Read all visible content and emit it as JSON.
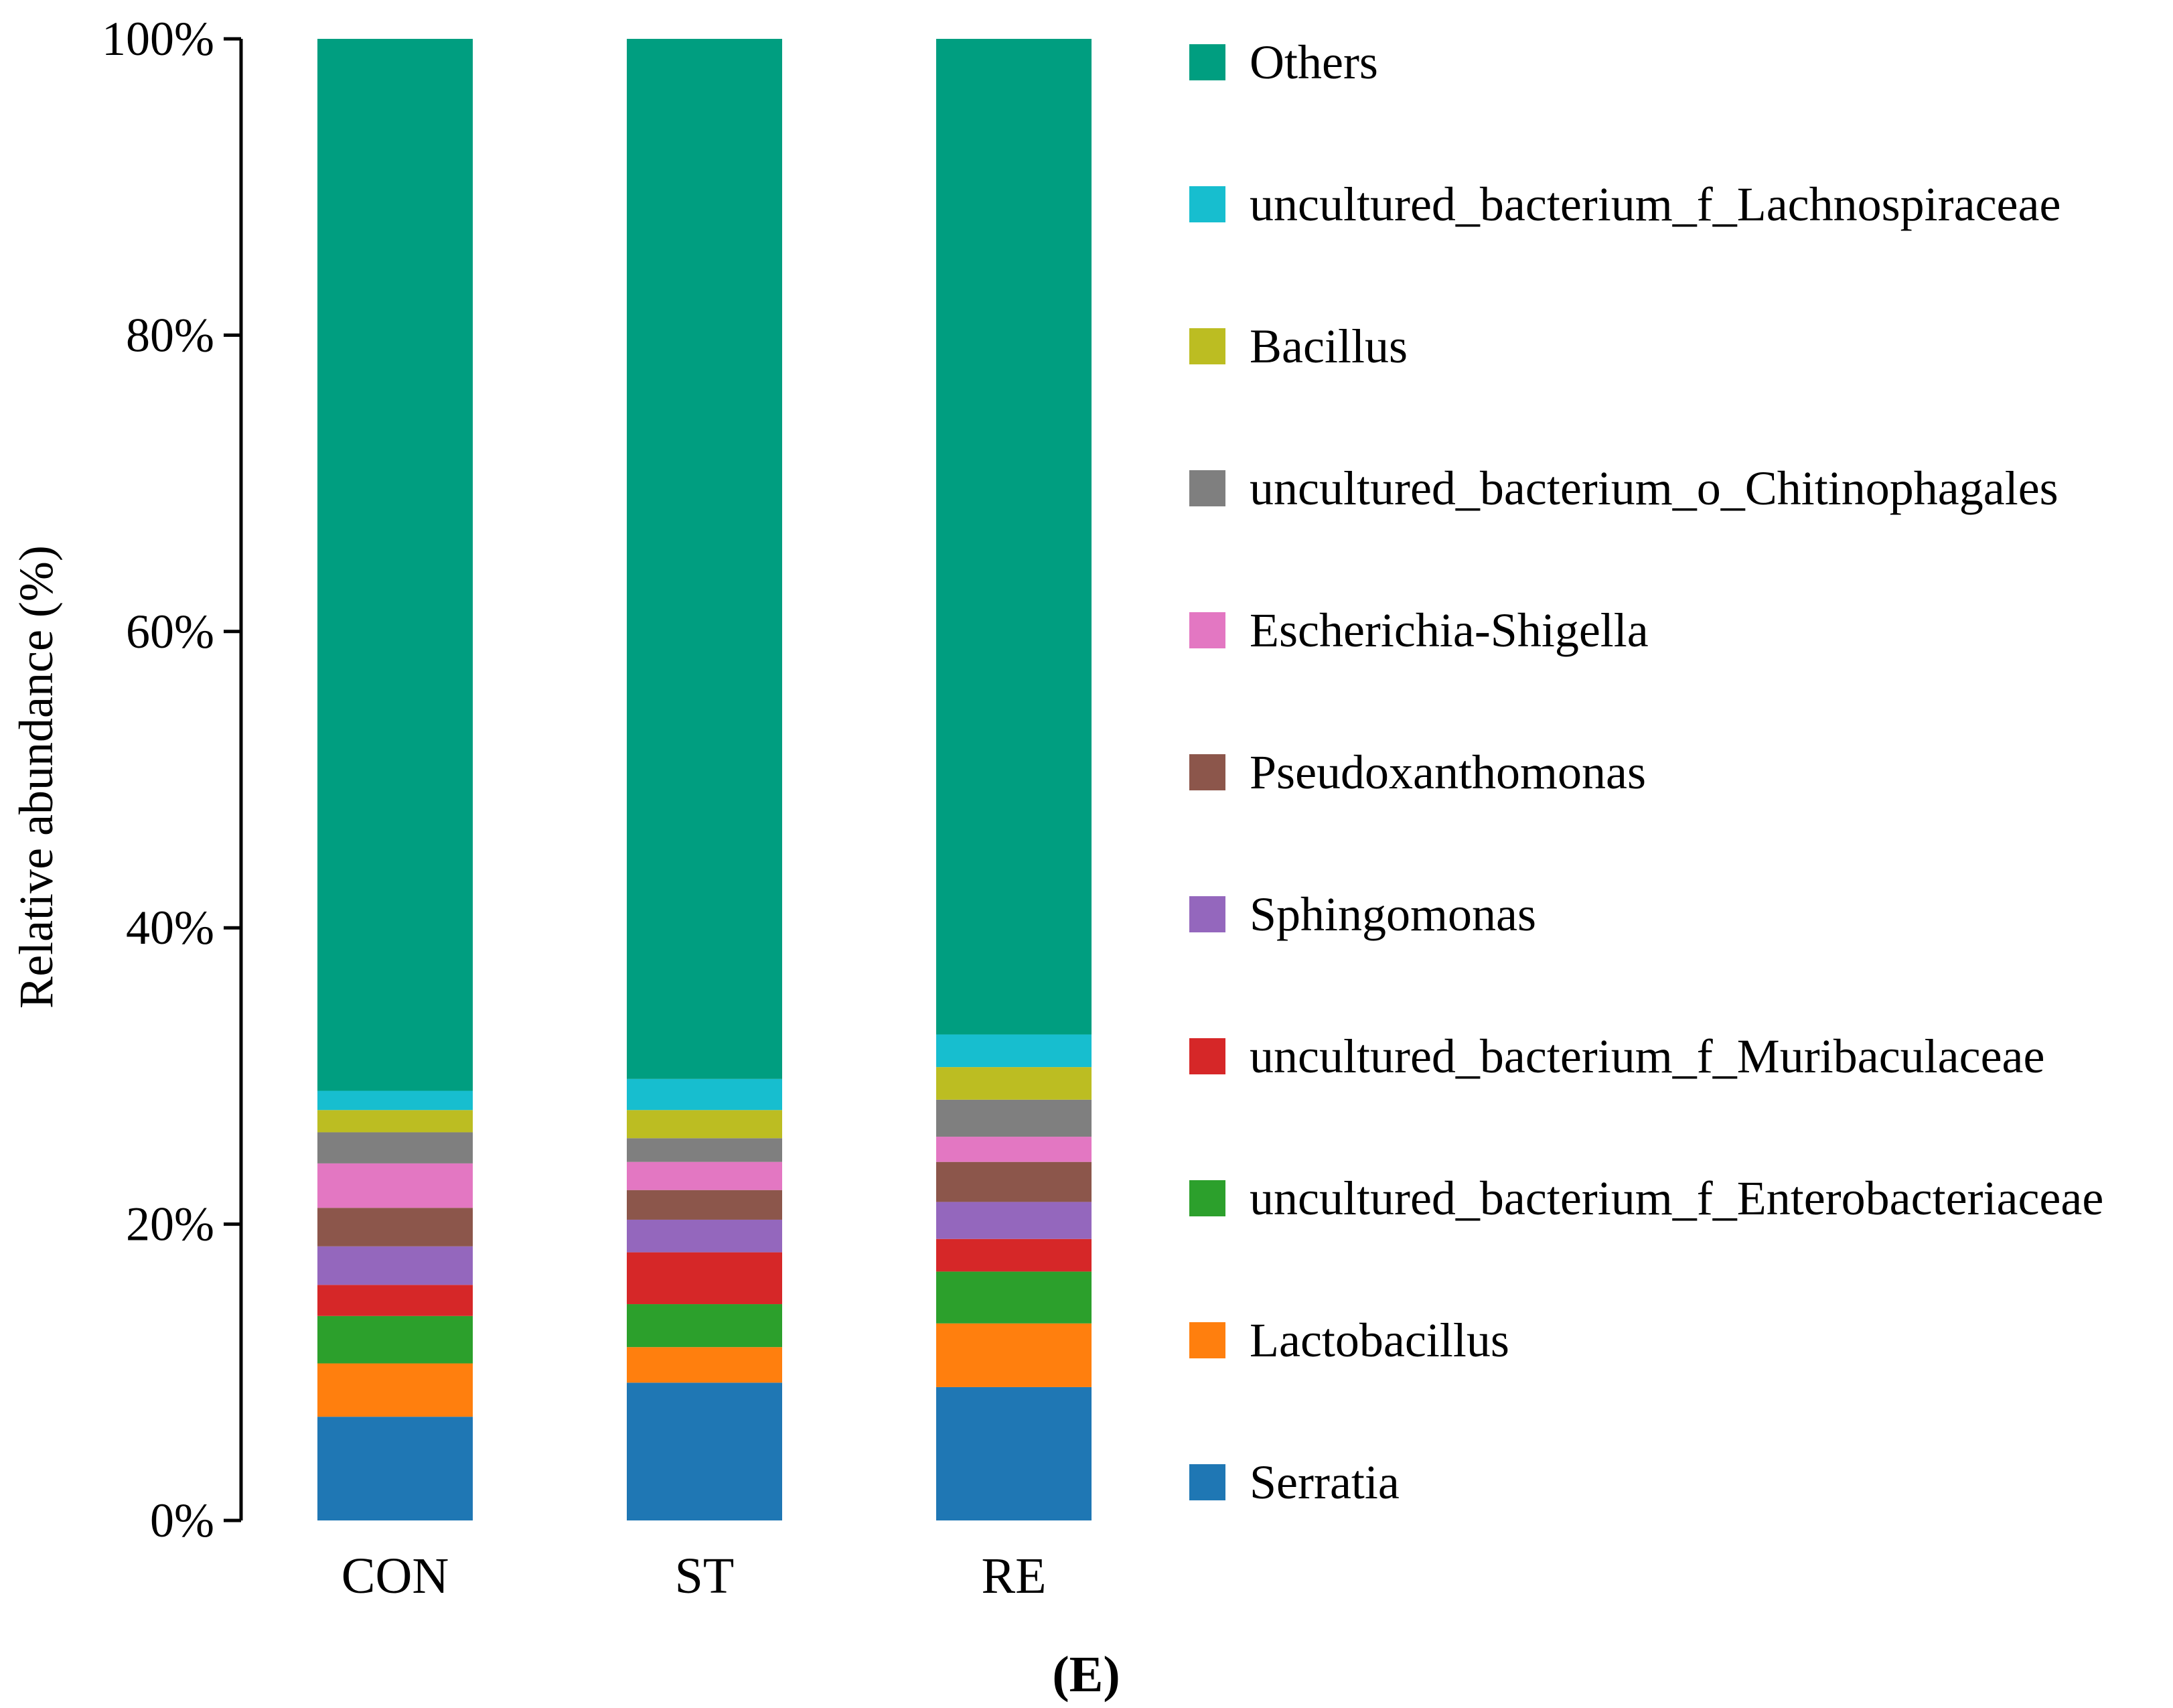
{
  "chart_data": {
    "type": "bar",
    "stacked": true,
    "title": "",
    "xlabel": "",
    "ylabel": "Relative abundance (%)",
    "ylim": [
      0,
      100
    ],
    "yticks": [
      0,
      20,
      40,
      60,
      80,
      100
    ],
    "ytick_labels": [
      "0%",
      "20%",
      "40%",
      "60%",
      "80%",
      "100%"
    ],
    "categories": [
      "CON",
      "ST",
      "RE"
    ],
    "legend_position": "right",
    "series": [
      {
        "name": "Serratia",
        "color": "#1f77b4",
        "values": [
          7.0,
          9.3,
          9.0
        ]
      },
      {
        "name": "Lactobacillus",
        "color": "#ff7f0e",
        "values": [
          3.6,
          2.4,
          4.3
        ]
      },
      {
        "name": "uncultured_bacterium_f_Enterobacteriaceae",
        "color": "#2ca02c",
        "values": [
          3.2,
          2.9,
          3.5
        ]
      },
      {
        "name": "uncultured_bacterium_f_Muribaculaceae",
        "color": "#d62728",
        "values": [
          2.1,
          3.5,
          2.2
        ]
      },
      {
        "name": "Sphingomonas",
        "color": "#9467bd",
        "values": [
          2.6,
          2.2,
          2.5
        ]
      },
      {
        "name": "Pseudoxanthomonas",
        "color": "#8c564b",
        "values": [
          2.6,
          2.0,
          2.7
        ]
      },
      {
        "name": "Escherichia-Shigella",
        "color": "#e377c2",
        "values": [
          3.0,
          1.9,
          1.7
        ]
      },
      {
        "name": "uncultured_bacterium_o_Chitinophagales",
        "color": "#7f7f7f",
        "values": [
          2.1,
          1.6,
          2.5
        ]
      },
      {
        "name": "Bacillus",
        "color": "#bcbd22",
        "values": [
          1.5,
          1.9,
          2.2
        ]
      },
      {
        "name": "uncultured_bacterium_f_Lachnospiraceae",
        "color": "#17becf",
        "values": [
          1.3,
          2.1,
          2.2
        ]
      },
      {
        "name": "Others",
        "color": "#009e80",
        "values": [
          71.0,
          70.2,
          67.2
        ]
      }
    ],
    "panel_label": "(E)"
  }
}
